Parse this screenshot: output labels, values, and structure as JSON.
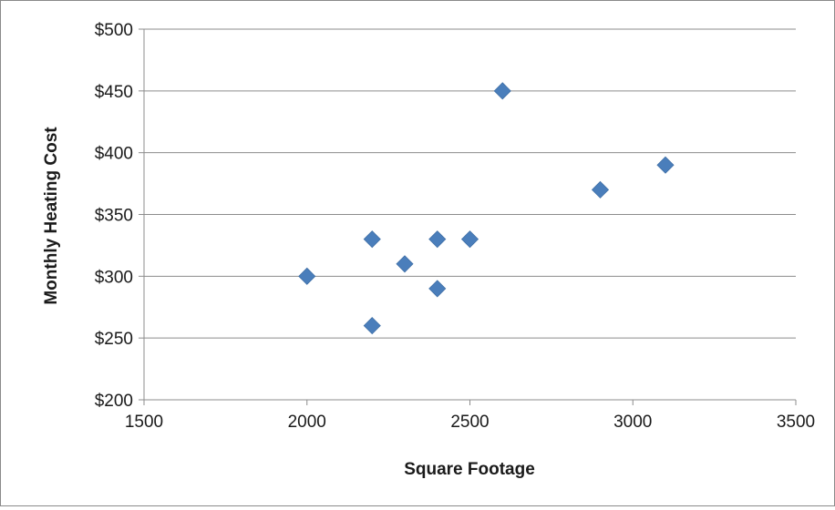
{
  "chart_data": {
    "type": "scatter",
    "title": "",
    "xlabel": "Square Footage",
    "ylabel": "Monthly Heating Cost",
    "xlim": [
      1500,
      3500
    ],
    "ylim": [
      200,
      500
    ],
    "x_ticks": [
      1500,
      2000,
      2500,
      3000,
      3500
    ],
    "y_ticks": [
      200,
      250,
      300,
      350,
      400,
      450,
      500
    ],
    "x_tick_labels": [
      "1500",
      "2000",
      "2500",
      "3000",
      "3500"
    ],
    "y_tick_labels": [
      "$200",
      "$250",
      "$300",
      "$350",
      "$400",
      "$450",
      "$500"
    ],
    "grid": "horizontal",
    "legend": "none",
    "marker": "diamond",
    "marker_color": "#4a7ebb",
    "series": [
      {
        "x": [
          2000,
          2200,
          2200,
          2300,
          2400,
          2400,
          2500,
          2600,
          2900,
          3100
        ],
        "y": [
          300,
          330,
          260,
          310,
          330,
          290,
          330,
          450,
          370,
          390
        ]
      }
    ]
  }
}
